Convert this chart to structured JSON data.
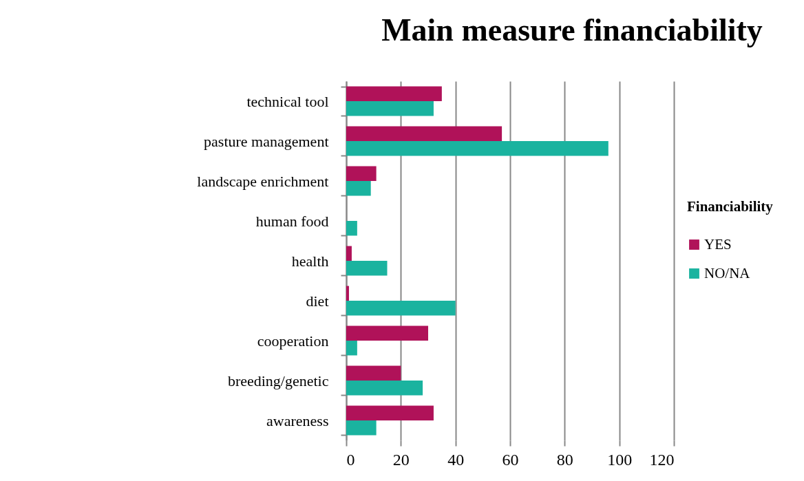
{
  "chart_data": {
    "type": "bar",
    "orientation": "horizontal",
    "title": "Main measure financiability",
    "legend_title": "Financiability",
    "categories": [
      "technical tool",
      "pasture management",
      "landscape enrichment",
      "human food",
      "health",
      "diet",
      "cooperation",
      "breeding/genetic",
      "awareness"
    ],
    "series": [
      {
        "name": "YES",
        "color": "#b01259",
        "values": [
          35,
          57,
          11,
          0,
          2,
          1,
          30,
          20,
          32
        ]
      },
      {
        "name": "NO/NA",
        "color": "#1ab39f",
        "values": [
          32,
          96,
          9,
          4,
          15,
          40,
          4,
          28,
          11
        ]
      }
    ],
    "xlim": [
      0,
      120
    ],
    "xticks": [
      0,
      20,
      40,
      60,
      80,
      100,
      120
    ],
    "grid": "x",
    "legend": "right"
  }
}
